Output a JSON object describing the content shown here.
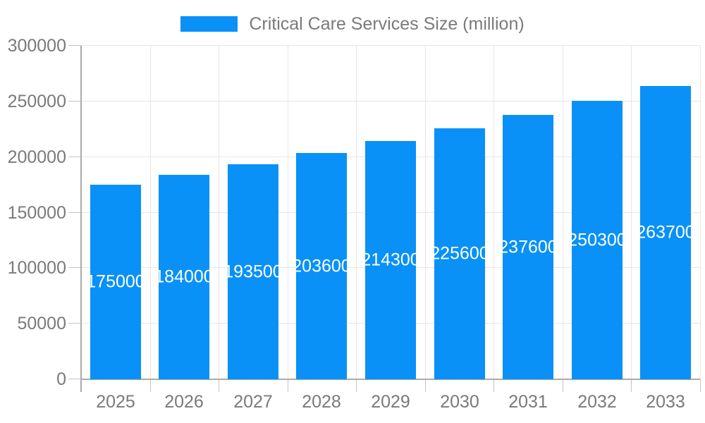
{
  "legend": {
    "label": "Critical Care Services Size (million)"
  },
  "colors": {
    "bar": "#0991f7",
    "bar_label_text": "#ffffff",
    "tick_text": "#7a7a7a",
    "gridline": "#e6e6e6",
    "axis_line": "#ababab",
    "tick_mark": "#c4c4c4",
    "background": "#ffffff"
  },
  "chart_data": {
    "type": "bar",
    "title": "Critical Care Services Size (million)",
    "categories": [
      "2025",
      "2026",
      "2027",
      "2028",
      "2029",
      "2030",
      "2031",
      "2032",
      "2033"
    ],
    "values": [
      175000,
      184000,
      193500,
      203600,
      214300,
      225600,
      237600,
      250300,
      263700
    ],
    "series": [
      {
        "name": "Critical Care Services Size (million)",
        "values": [
          175000,
          184000,
          193500,
          203600,
          214300,
          225600,
          237600,
          250300,
          263700
        ]
      }
    ],
    "xlabel": "",
    "ylabel": "",
    "ylim": [
      0,
      300000
    ],
    "ytick_step": 50000,
    "yticks": [
      0,
      50000,
      100000,
      150000,
      200000,
      250000,
      300000
    ],
    "grid": true,
    "legend_position": "top-center",
    "bar_value_labels": [
      "175000",
      "184000",
      "193500",
      "203600",
      "214300",
      "225600",
      "237600",
      "250300",
      "263700"
    ]
  }
}
